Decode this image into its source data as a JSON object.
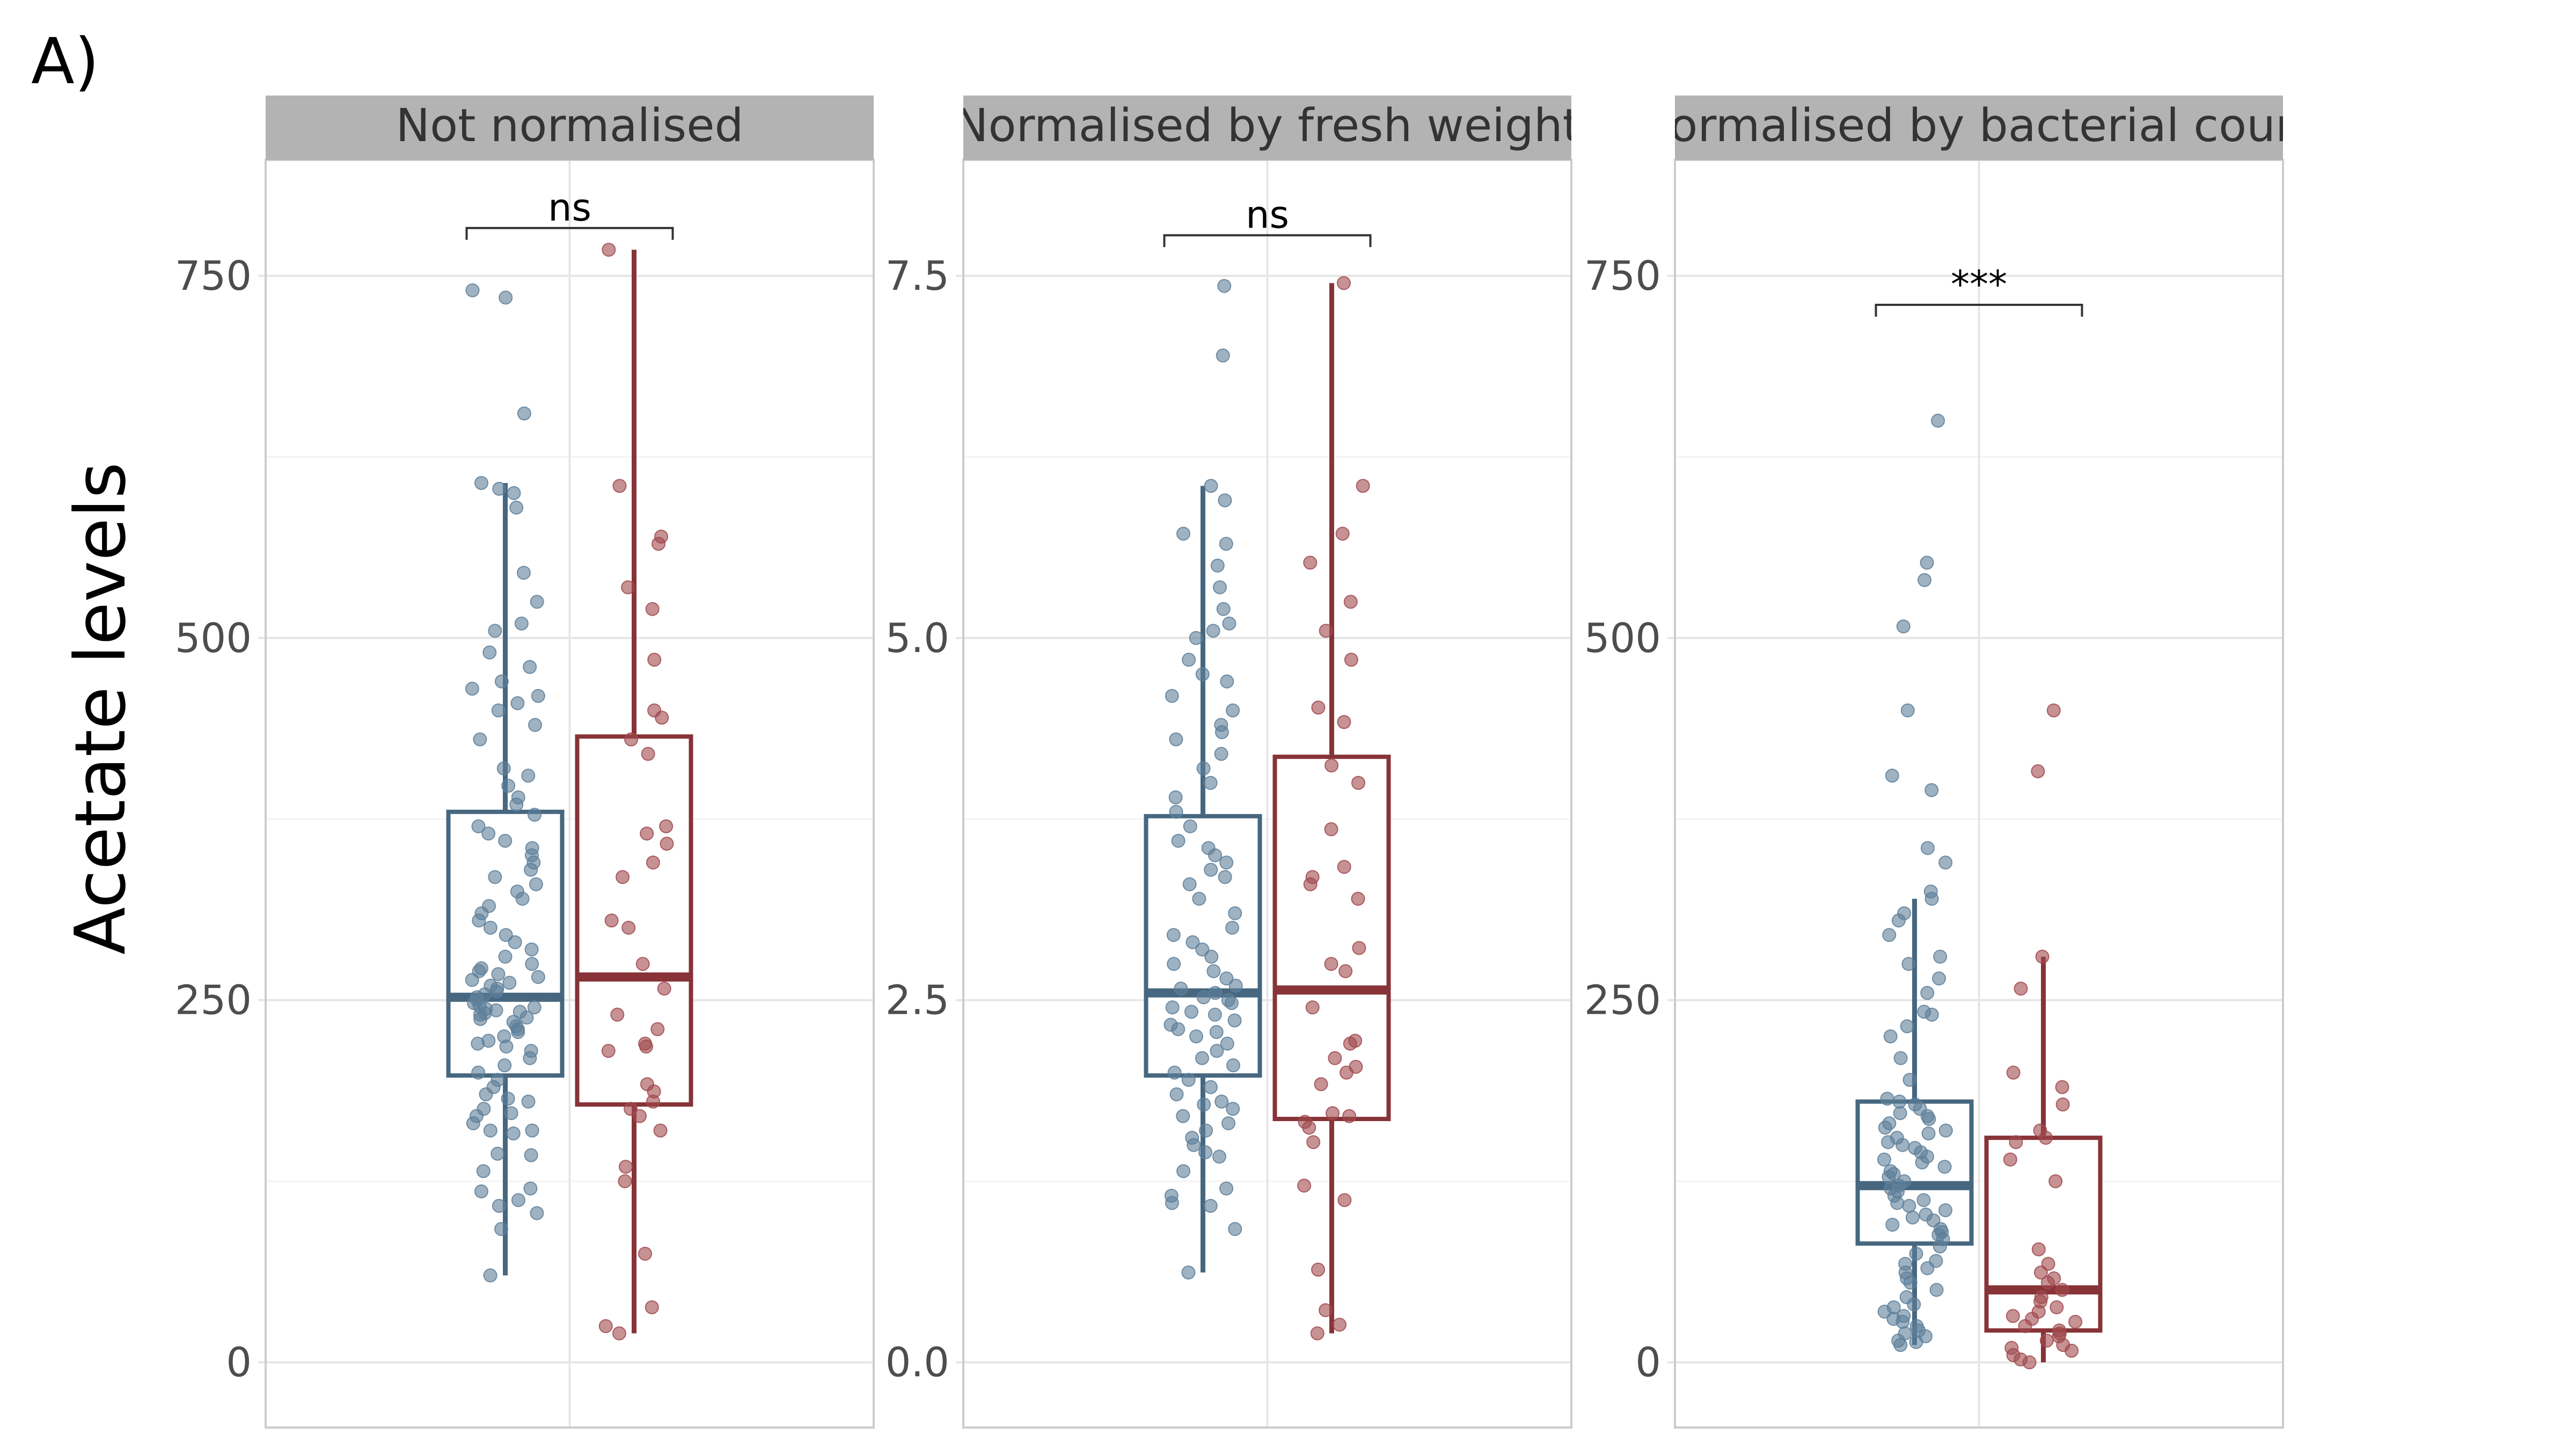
{
  "figure": {
    "panel_tag": "A)",
    "ylabel": "Acetate levels"
  },
  "colors": {
    "group1": "#46677F",
    "group1_points": "#5E7F99",
    "group2": "#873337",
    "group2_points": "#A0494D",
    "strip_bg": "#B3B3B3",
    "strip_text": "#333333",
    "grid_major": "#E6E6E6",
    "grid_minor": "#F2F2F2",
    "panel_border": "#CCCCCC"
  },
  "chart_data": [
    {
      "type": "box",
      "title": "Not normalised",
      "ylim": [
        -45,
        830
      ],
      "yticks": [
        0,
        250,
        500,
        750
      ],
      "ytick_labels": [
        "0",
        "250",
        "500",
        "750"
      ],
      "significance": "ns",
      "bracket_y": 783,
      "groups": [
        {
          "box": {
            "lower_whisker": 60,
            "q1": 198,
            "median": 252,
            "q3": 380,
            "upper_whisker": 607
          },
          "points": [
            60,
            92,
            103,
            108,
            112,
            118,
            120,
            132,
            143,
            144,
            158,
            160,
            160,
            165,
            170,
            172,
            175,
            180,
            182,
            185,
            190,
            195,
            200,
            205,
            210,
            215,
            218,
            220,
            222,
            225,
            228,
            230,
            232,
            235,
            237,
            238,
            240,
            241,
            242,
            243,
            244,
            245,
            246,
            248,
            250,
            252,
            254,
            256,
            258,
            260,
            262,
            264,
            266,
            268,
            270,
            272,
            275,
            280,
            285,
            290,
            295,
            300,
            305,
            310,
            315,
            320,
            325,
            330,
            335,
            340,
            345,
            350,
            355,
            360,
            365,
            370,
            378,
            385,
            390,
            398,
            405,
            410,
            430,
            440,
            450,
            455,
            460,
            465,
            470,
            480,
            490,
            505,
            510,
            525,
            545,
            590,
            600,
            603,
            607,
            655,
            735,
            740
          ]
        },
        {
          "box": {
            "lower_whisker": 20,
            "q1": 178,
            "median": 266,
            "q3": 432,
            "upper_whisker": 768
          },
          "points": [
            20,
            25,
            38,
            75,
            125,
            135,
            160,
            170,
            175,
            180,
            187,
            192,
            215,
            218,
            220,
            230,
            240,
            258,
            275,
            300,
            305,
            335,
            345,
            358,
            365,
            370,
            420,
            430,
            445,
            450,
            485,
            520,
            535,
            565,
            570,
            605,
            768
          ]
        }
      ]
    },
    {
      "type": "box",
      "title": "Normalised by fresh weight",
      "ylim": [
        -0.45,
        8.3
      ],
      "yticks": [
        0,
        2.5,
        5,
        7.5
      ],
      "ytick_labels": [
        "0.0",
        "2.5",
        "5.0",
        "7.5"
      ],
      "significance": "ns",
      "bracket_y": 7.78,
      "groups": [
        {
          "box": {
            "lower_whisker": 0.62,
            "q1": 1.98,
            "median": 2.55,
            "q3": 3.77,
            "upper_whisker": 6.05
          },
          "points": [
            0.62,
            0.92,
            1.08,
            1.1,
            1.15,
            1.2,
            1.32,
            1.42,
            1.45,
            1.5,
            1.55,
            1.6,
            1.65,
            1.7,
            1.75,
            1.78,
            1.8,
            1.85,
            1.9,
            1.95,
            2.0,
            2.05,
            2.1,
            2.15,
            2.2,
            2.25,
            2.28,
            2.3,
            2.33,
            2.36,
            2.4,
            2.42,
            2.45,
            2.48,
            2.5,
            2.52,
            2.55,
            2.58,
            2.6,
            2.65,
            2.7,
            2.75,
            2.8,
            2.85,
            2.9,
            2.95,
            3.0,
            3.1,
            3.2,
            3.3,
            3.35,
            3.4,
            3.45,
            3.5,
            3.55,
            3.6,
            3.7,
            3.8,
            3.9,
            4.0,
            4.1,
            4.2,
            4.3,
            4.35,
            4.4,
            4.5,
            4.6,
            4.7,
            4.75,
            4.85,
            5.0,
            5.05,
            5.1,
            5.2,
            5.35,
            5.5,
            5.65,
            5.72,
            5.95,
            6.05,
            6.95,
            7.43
          ]
        },
        {
          "box": {
            "lower_whisker": 0.2,
            "q1": 1.68,
            "median": 2.57,
            "q3": 4.18,
            "upper_whisker": 7.45
          },
          "points": [
            0.2,
            0.26,
            0.36,
            0.64,
            1.12,
            1.22,
            1.52,
            1.62,
            1.66,
            1.7,
            1.72,
            1.92,
            2.0,
            2.04,
            2.1,
            2.2,
            2.22,
            2.45,
            2.7,
            2.75,
            2.86,
            3.2,
            3.3,
            3.35,
            3.42,
            3.68,
            4.0,
            4.12,
            4.42,
            4.52,
            4.85,
            5.05,
            5.25,
            5.52,
            5.72,
            6.05,
            7.45
          ]
        }
      ]
    },
    {
      "type": "box",
      "title": "Normalised by bacterial count",
      "ylim": [
        -45,
        830
      ],
      "yticks": [
        0,
        250,
        500,
        750
      ],
      "ytick_labels": [
        "0",
        "250",
        "500",
        "750"
      ],
      "significance": "***",
      "bracket_y": 730,
      "groups": [
        {
          "box": {
            "lower_whisker": 12,
            "q1": 82,
            "median": 122,
            "q3": 180,
            "upper_whisker": 320
          },
          "points": [
            12,
            14,
            15,
            18,
            20,
            22,
            25,
            28,
            30,
            32,
            35,
            38,
            40,
            45,
            50,
            55,
            58,
            62,
            65,
            68,
            70,
            75,
            80,
            85,
            88,
            90,
            92,
            95,
            98,
            100,
            102,
            105,
            108,
            110,
            112,
            115,
            118,
            120,
            122,
            125,
            128,
            130,
            132,
            135,
            138,
            140,
            142,
            145,
            148,
            150,
            152,
            155,
            158,
            160,
            162,
            165,
            168,
            170,
            172,
            175,
            178,
            180,
            182,
            195,
            210,
            225,
            232,
            240,
            242,
            255,
            265,
            275,
            280,
            295,
            305,
            310,
            320,
            325,
            345,
            355,
            395,
            405,
            450,
            508,
            540,
            552,
            650
          ]
        },
        {
          "box": {
            "lower_whisker": 0,
            "q1": 22,
            "median": 50,
            "q3": 155,
            "upper_whisker": 280
          },
          "points": [
            0,
            2,
            5,
            8,
            10,
            12,
            15,
            18,
            20,
            22,
            25,
            28,
            30,
            32,
            35,
            38,
            42,
            45,
            50,
            55,
            58,
            62,
            68,
            78,
            125,
            140,
            152,
            155,
            160,
            178,
            190,
            200,
            258,
            280,
            408,
            450
          ]
        }
      ]
    }
  ]
}
